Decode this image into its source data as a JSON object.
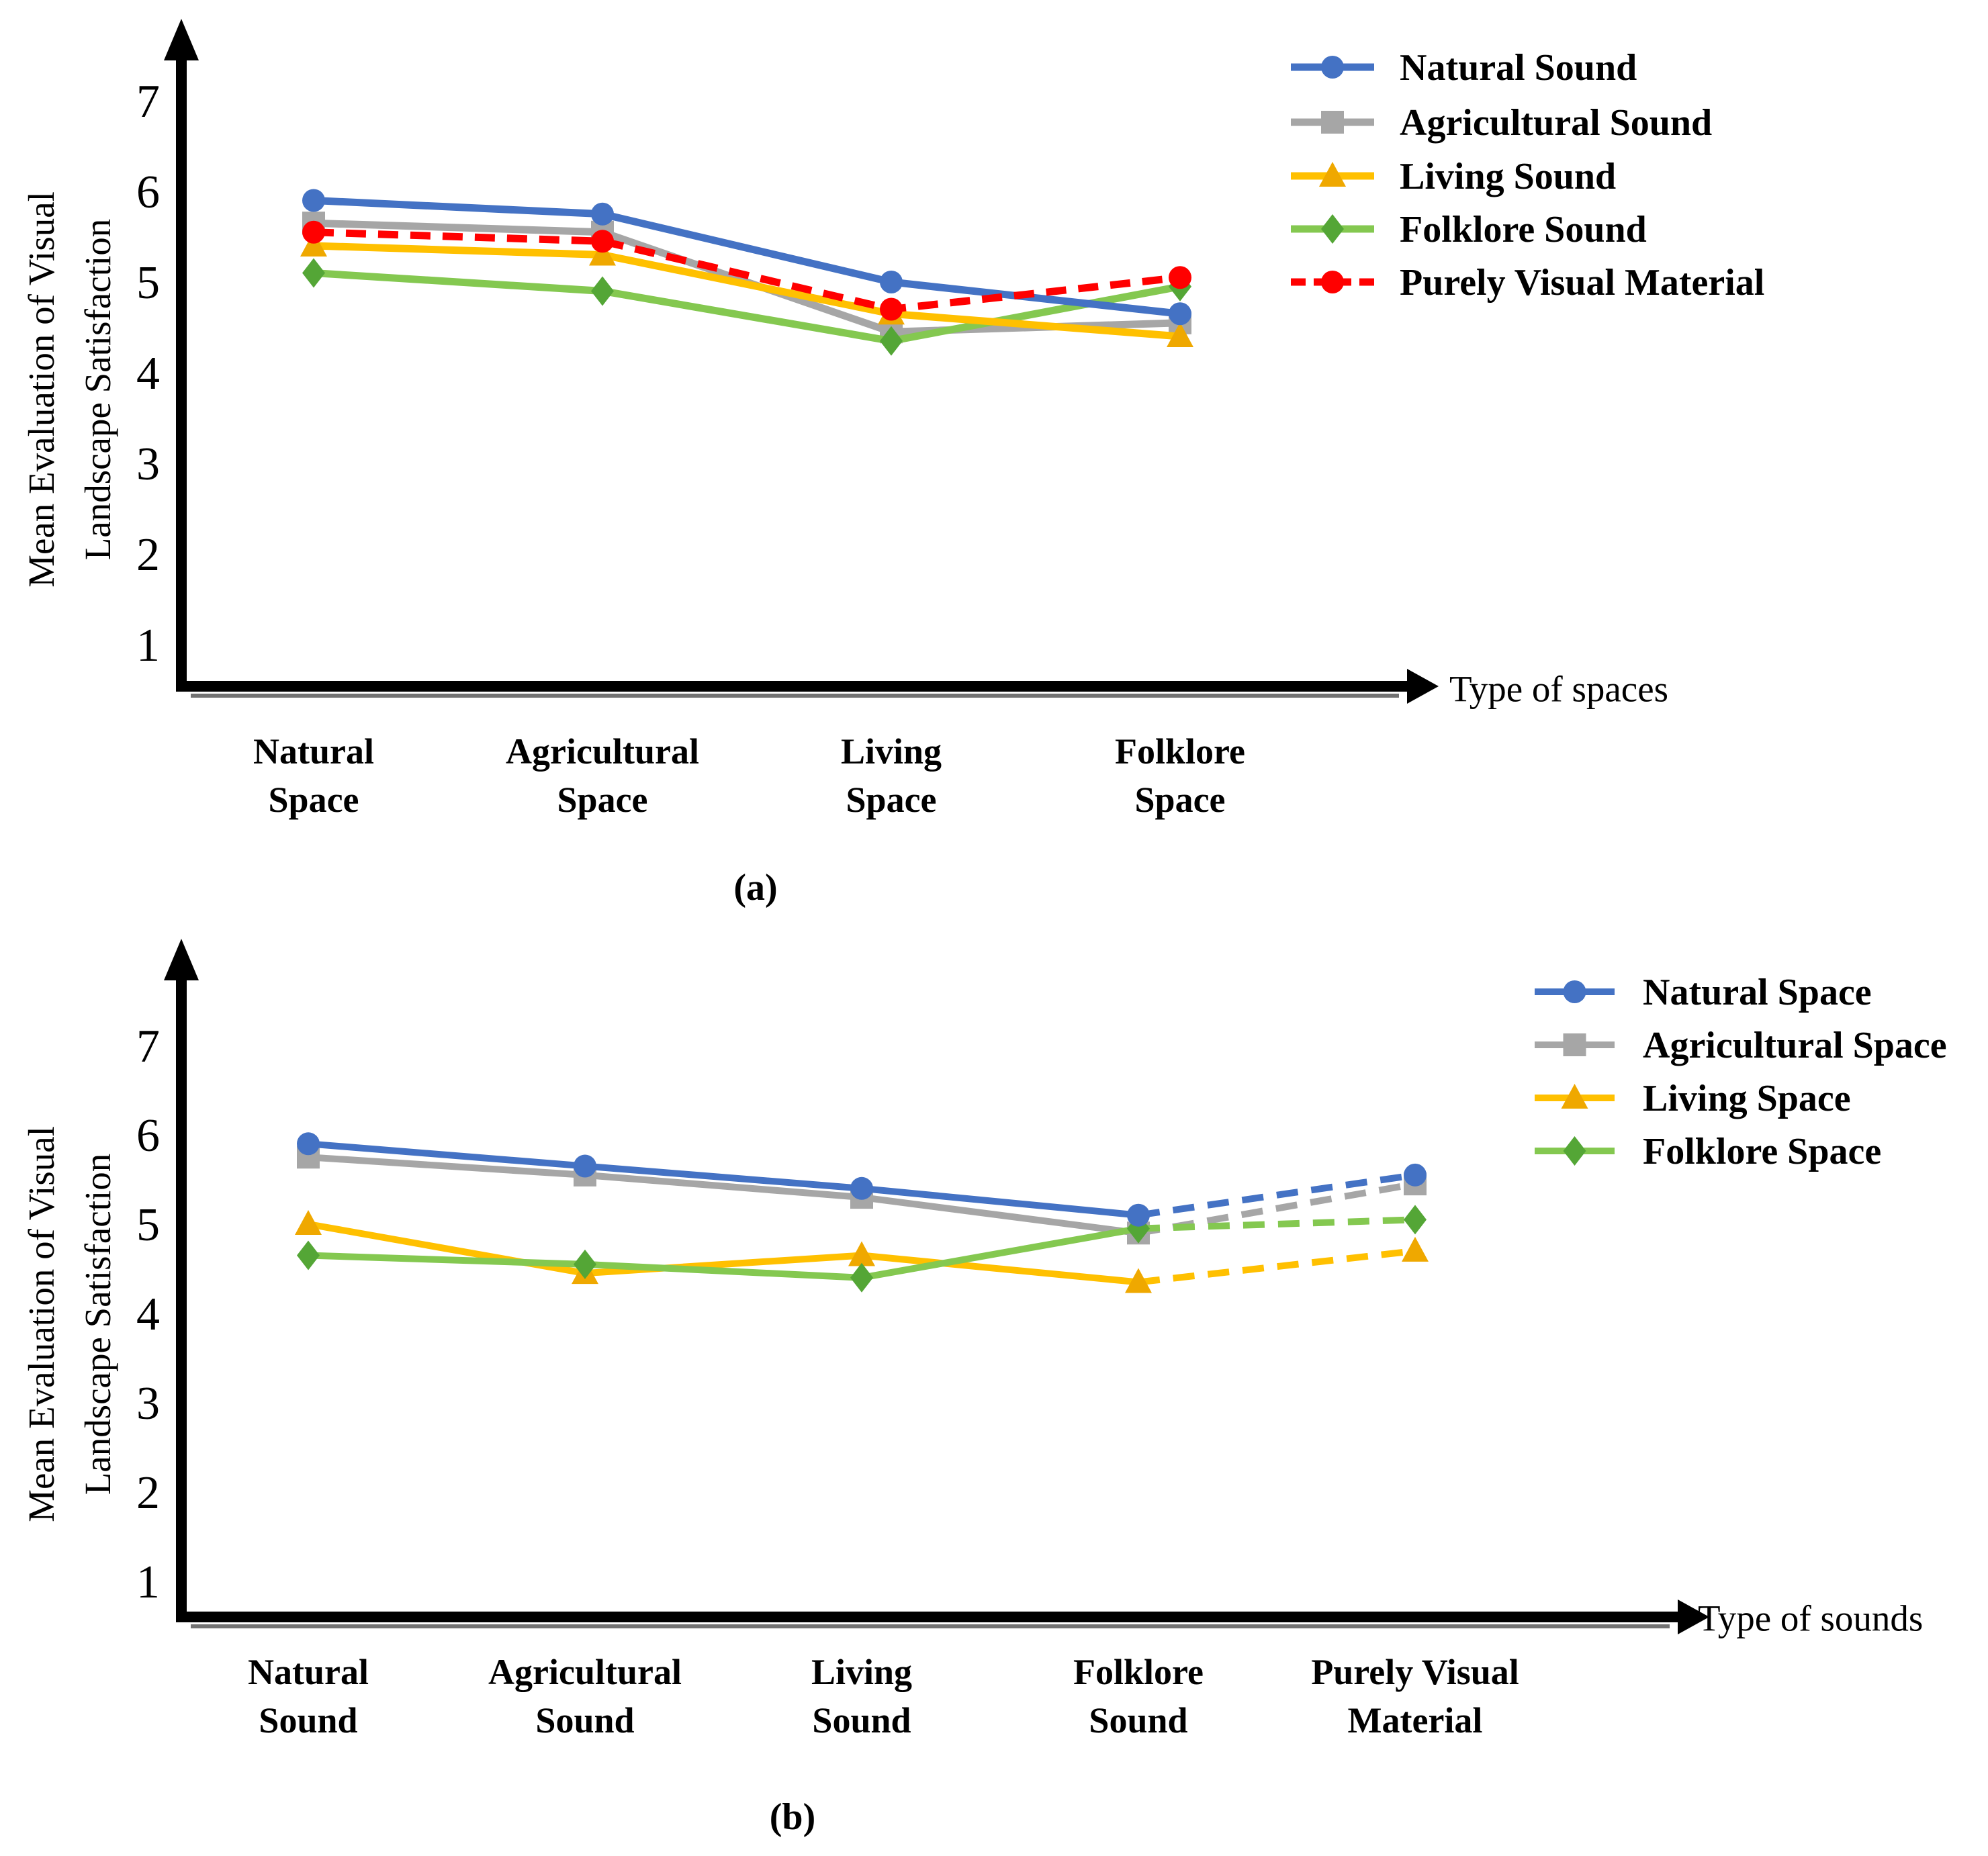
{
  "page": {
    "background": "#ffffff"
  },
  "colors": {
    "axis": "#000000",
    "blue": "#4472C4",
    "gray": "#A6A6A6",
    "yellow": "#FFC000",
    "yellow_marker": "#EFA800",
    "green_line": "#84C850",
    "green_marker": "#54A636",
    "red": "#FF0000"
  },
  "chart_data": [
    {
      "id": "a",
      "type": "line",
      "caption": "(a)",
      "xlabel": "Type of spaces",
      "ylabel": "Mean Evaluation of Visual Landscape Satisfaction",
      "ylabel_lines": [
        "Mean Evaluation of Visual",
        "Landscape Satisfaction"
      ],
      "ylim": [
        1,
        7
      ],
      "yticks": [
        "7",
        "6",
        "5",
        "4",
        "3",
        "2",
        "1"
      ],
      "grid": false,
      "legend_position": "top-right",
      "categories": [
        "Natural Space",
        "Agricultural Space",
        "Living Space",
        "Folklore Space"
      ],
      "category_label_lines": [
        [
          "Natural",
          "Space"
        ],
        [
          "Agricultural",
          "Space"
        ],
        [
          "Living",
          "Space"
        ],
        [
          "Folklore",
          "Space"
        ]
      ],
      "series": [
        {
          "name": "Natural Sound",
          "marker": "circle",
          "line_color": "#4472C4",
          "marker_color": "#4472C4",
          "line_style": "solid",
          "values": [
            5.9,
            5.75,
            5.0,
            4.65
          ]
        },
        {
          "name": "Agricultural Sound",
          "marker": "square",
          "line_color": "#A6A6A6",
          "marker_color": "#A6A6A6",
          "line_style": "solid",
          "values": [
            5.65,
            5.55,
            4.45,
            4.55
          ]
        },
        {
          "name": "Living Sound",
          "marker": "triangle",
          "line_color": "#FFC000",
          "marker_color": "#EFA800",
          "line_style": "solid",
          "values": [
            5.4,
            5.3,
            4.65,
            4.4
          ]
        },
        {
          "name": "Folklore Sound",
          "marker": "diamond",
          "line_color": "#84C850",
          "marker_color": "#54A636",
          "line_style": "solid",
          "values": [
            5.1,
            4.9,
            4.35,
            4.95
          ]
        },
        {
          "name": "Purely Visual Material",
          "marker": "circle",
          "line_color": "#FF0000",
          "marker_color": "#FF0000",
          "line_style": "dashed",
          "values": [
            5.55,
            5.45,
            4.7,
            5.05
          ]
        }
      ]
    },
    {
      "id": "b",
      "type": "line",
      "caption": "(b)",
      "xlabel": "Type of sounds",
      "ylabel": "Mean Evaluation of Visual Landscape Satisfaction",
      "ylabel_lines": [
        "Mean Evaluation of Visual",
        "Landscape Satisfaction"
      ],
      "ylim": [
        1,
        7
      ],
      "yticks": [
        "7",
        "6",
        "5",
        "4",
        "3",
        "2",
        "1"
      ],
      "grid": false,
      "legend_position": "top-right",
      "dashed_last_segment": true,
      "categories": [
        "Natural Sound",
        "Agricultural Sound",
        "Living Sound",
        "Folklore Sound",
        "Purely Visual Material"
      ],
      "category_label_lines": [
        [
          "Natural",
          "Sound"
        ],
        [
          "Agricultural",
          "Sound"
        ],
        [
          "Living",
          "Sound"
        ],
        [
          "Folklore",
          "Sound"
        ],
        [
          "Purely Visual",
          "Material"
        ]
      ],
      "series": [
        {
          "name": "Natural Space",
          "marker": "circle",
          "line_color": "#4472C4",
          "marker_color": "#4472C4",
          "line_style": "solid",
          "values": [
            5.9,
            5.65,
            5.4,
            5.1,
            5.55
          ]
        },
        {
          "name": "Agricultural Space",
          "marker": "square",
          "line_color": "#A6A6A6",
          "marker_color": "#A6A6A6",
          "line_style": "solid",
          "values": [
            5.75,
            5.55,
            5.3,
            4.9,
            5.45
          ]
        },
        {
          "name": "Living Space",
          "marker": "triangle",
          "line_color": "#FFC000",
          "marker_color": "#EFA800",
          "line_style": "solid",
          "values": [
            5.0,
            4.45,
            4.65,
            4.35,
            4.7
          ]
        },
        {
          "name": "Folklore Space",
          "marker": "diamond",
          "line_color": "#84C850",
          "marker_color": "#54A636",
          "line_style": "solid",
          "values": [
            4.65,
            4.55,
            4.4,
            4.95,
            5.05
          ]
        }
      ]
    }
  ]
}
